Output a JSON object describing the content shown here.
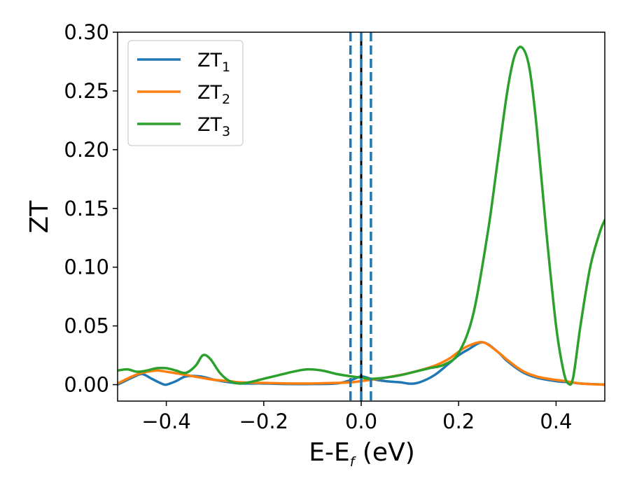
{
  "chart_data": {
    "type": "line",
    "xlabel": "E-E",
    "xlabel_sub": "f",
    "xlabel_unit": " (eV)",
    "ylabel": "ZT",
    "xlim": [
      -0.5,
      0.5
    ],
    "ylim": [
      -0.014,
      0.3
    ],
    "xticks": [
      -0.4,
      -0.2,
      0.0,
      0.2,
      0.4
    ],
    "xtick_labels": [
      "−0.4",
      "−0.2",
      "0.0",
      "0.2",
      "0.4"
    ],
    "yticks": [
      0.0,
      0.05,
      0.1,
      0.15,
      0.2,
      0.25,
      0.3
    ],
    "ytick_labels": [
      "0.00",
      "0.05",
      "0.10",
      "0.15",
      "0.20",
      "0.25",
      "0.30"
    ],
    "grid": false,
    "legend_position": "top-left",
    "series": [
      {
        "name": "ZT",
        "name_sub": "1",
        "color": "#1f77b4",
        "x": [
          -0.5,
          -0.47,
          -0.45,
          -0.43,
          -0.41,
          -0.4,
          -0.38,
          -0.36,
          -0.33,
          -0.3,
          -0.27,
          -0.25,
          -0.22,
          -0.2,
          -0.15,
          -0.1,
          -0.05,
          -0.02,
          0.0,
          0.02,
          0.05,
          0.08,
          0.1,
          0.12,
          0.15,
          0.18,
          0.2,
          0.22,
          0.25,
          0.28,
          0.3,
          0.33,
          0.36,
          0.4,
          0.43,
          0.45,
          0.5
        ],
        "y": [
          0.0,
          0.006,
          0.009,
          0.005,
          0.001,
          0.0,
          0.003,
          0.007,
          0.007,
          0.004,
          0.002,
          0.001,
          0.001,
          0.001,
          0.0005,
          0.0005,
          0.001,
          0.004,
          0.007,
          0.005,
          0.003,
          0.002,
          0.0008,
          0.002,
          0.008,
          0.018,
          0.025,
          0.03,
          0.036,
          0.028,
          0.02,
          0.011,
          0.006,
          0.003,
          0.002,
          0.001,
          0.0
        ]
      },
      {
        "name": "ZT",
        "name_sub": "2",
        "color": "#ff7f0e",
        "x": [
          -0.5,
          -0.47,
          -0.45,
          -0.42,
          -0.4,
          -0.37,
          -0.33,
          -0.3,
          -0.27,
          -0.25,
          -0.2,
          -0.15,
          -0.1,
          -0.05,
          -0.02,
          0.0,
          0.05,
          0.1,
          0.15,
          0.18,
          0.2,
          0.22,
          0.25,
          0.28,
          0.3,
          0.33,
          0.36,
          0.4,
          0.42,
          0.45,
          0.5
        ],
        "y": [
          0.001,
          0.007,
          0.01,
          0.012,
          0.011,
          0.009,
          0.006,
          0.004,
          0.003,
          0.002,
          0.0015,
          0.001,
          0.001,
          0.0015,
          0.002,
          0.003,
          0.006,
          0.01,
          0.016,
          0.022,
          0.028,
          0.033,
          0.036,
          0.028,
          0.021,
          0.012,
          0.007,
          0.004,
          0.003,
          0.001,
          0.0
        ]
      },
      {
        "name": "ZT",
        "name_sub": "3",
        "color": "#2ca02c",
        "x": [
          -0.5,
          -0.48,
          -0.46,
          -0.44,
          -0.42,
          -0.4,
          -0.38,
          -0.36,
          -0.34,
          -0.325,
          -0.31,
          -0.29,
          -0.27,
          -0.25,
          -0.23,
          -0.2,
          -0.17,
          -0.14,
          -0.11,
          -0.08,
          -0.05,
          -0.02,
          0.0,
          0.02,
          0.05,
          0.08,
          0.11,
          0.14,
          0.17,
          0.2,
          0.23,
          0.26,
          0.28,
          0.3,
          0.315,
          0.33,
          0.345,
          0.36,
          0.38,
          0.4,
          0.415,
          0.425,
          0.435,
          0.45,
          0.47,
          0.49,
          0.5
        ],
        "y": [
          0.012,
          0.013,
          0.011,
          0.012,
          0.014,
          0.014,
          0.012,
          0.01,
          0.016,
          0.025,
          0.022,
          0.01,
          0.003,
          0.001,
          0.002,
          0.005,
          0.008,
          0.011,
          0.013,
          0.012,
          0.009,
          0.007,
          0.006,
          0.005,
          0.006,
          0.008,
          0.011,
          0.014,
          0.017,
          0.027,
          0.06,
          0.13,
          0.19,
          0.25,
          0.28,
          0.287,
          0.27,
          0.22,
          0.13,
          0.05,
          0.012,
          0.001,
          0.006,
          0.05,
          0.1,
          0.13,
          0.14
        ]
      }
    ],
    "vertical_lines": [
      {
        "x": 0.0,
        "style": "solid",
        "color": "#000000"
      },
      {
        "x": -0.022,
        "style": "dashed",
        "color": "#1f77b4"
      },
      {
        "x": 0.0,
        "style": "dashed",
        "color": "#1f77b4"
      },
      {
        "x": 0.02,
        "style": "dashed",
        "color": "#1f77b4"
      }
    ]
  }
}
